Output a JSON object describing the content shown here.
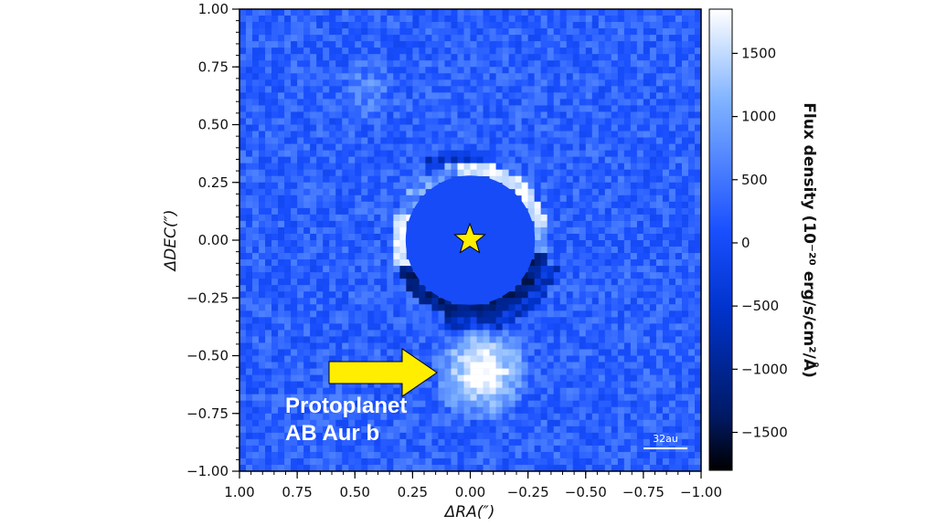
{
  "chart_data": {
    "type": "heatmap",
    "title": "",
    "xlabel": "ΔRA(″)",
    "ylabel": "ΔDEC(″)",
    "xlim": [
      1.0,
      -1.0
    ],
    "ylim": [
      -1.0,
      1.0
    ],
    "x_ticks": [
      "1.00",
      "0.75",
      "0.50",
      "0.25",
      "0.00",
      "−0.25",
      "−0.50",
      "−0.75",
      "−1.00"
    ],
    "y_ticks": [
      "1.00",
      "0.75",
      "0.50",
      "0.25",
      "0.00",
      "−0.25",
      "−0.50",
      "−0.75",
      "−1.00"
    ],
    "colorbar": {
      "label": "Flux density (10⁻²⁰ erg/s/cm²/Å)",
      "ticks": [
        "1500",
        "1000",
        "500",
        "0",
        "−500",
        "−1000",
        "−1500"
      ],
      "tick_values": [
        1500,
        1000,
        500,
        0,
        -500,
        -1000,
        -1500
      ],
      "range": [
        -1800,
        1850
      ],
      "colormap": [
        "#000000",
        "#001a66",
        "#0033cc",
        "#1a4fff",
        "#7fb2ff",
        "#ffffff"
      ]
    },
    "star": {
      "ra": 0.0,
      "dec": 0.0,
      "color": "#ffee00"
    },
    "coronagraph_mask_radius_arcsec": 0.28,
    "features": [
      {
        "name": "inner ring (bright arc)",
        "ra": -0.2,
        "dec": 0.2,
        "flux": 1850
      },
      {
        "name": "protoplanet",
        "ra": -0.05,
        "dec": -0.57,
        "flux": 1850
      }
    ],
    "annotations": {
      "arrow_color": "#ffee00",
      "label_line1": "Protoplanet",
      "label_line2": "AB Aur b",
      "scale_bar_label": "32au"
    }
  }
}
